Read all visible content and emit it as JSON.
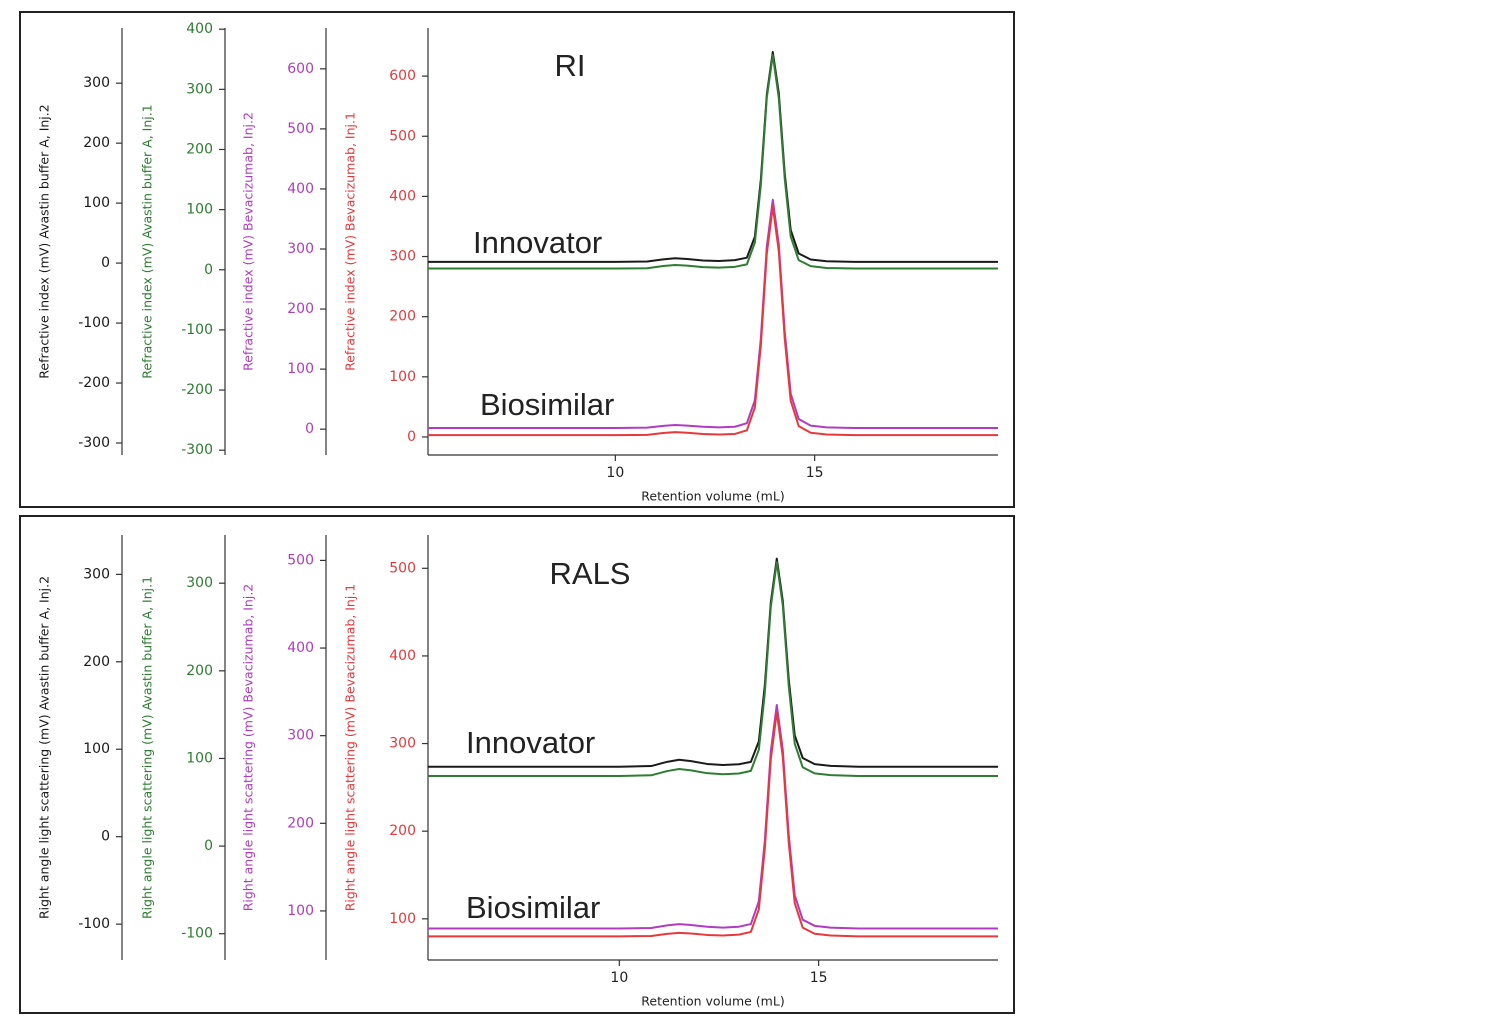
{
  "chart_data": [
    {
      "type": "line",
      "title": "RI",
      "x_label": "Retention volume (mL)",
      "annotations": [
        "Innovator",
        "Biosimilar"
      ],
      "xlim": [
        5.3,
        19.6
      ],
      "xticks": [
        10,
        15
      ],
      "x": [
        5.3,
        6,
        7,
        8,
        9,
        10,
        10.8,
        11.2,
        11.5,
        11.8,
        12.2,
        12.6,
        13.0,
        13.3,
        13.5,
        13.65,
        13.8,
        13.95,
        14.1,
        14.25,
        14.4,
        14.6,
        14.9,
        15.3,
        16,
        17,
        18,
        19,
        19.6
      ],
      "y_axes": [
        {
          "label": "Refractive index (mV) Avastin buffer A, Inj.2",
          "color": "#1a1a1a",
          "ylim": [
            -320,
            392
          ],
          "yticks": [
            -300,
            -200,
            -100,
            0,
            100,
            200,
            300
          ]
        },
        {
          "label": "Refractive index (mV) Avastin buffer A, Inj.1",
          "color": "#2e7d32",
          "ylim": [
            -308,
            402
          ],
          "yticks": [
            -300,
            -200,
            -100,
            0,
            100,
            200,
            300,
            400
          ]
        },
        {
          "label": "Refractive index (mV) Bevacizumab, Inj.2",
          "color": "#b03cc0",
          "ylim": [
            -43,
            668
          ],
          "yticks": [
            0,
            100,
            200,
            300,
            400,
            500,
            600
          ]
        },
        {
          "label": "Refractive index (mV) Bevacizumab, Inj.1",
          "color": "#e8383c",
          "ylim": [
            -30,
            680
          ],
          "yticks": [
            0,
            100,
            200,
            300,
            400,
            500,
            600
          ]
        }
      ],
      "series": [
        {
          "axis": 0,
          "color": "#1a1a1a",
          "values": [
            2,
            2,
            2,
            2,
            2,
            2,
            2.6,
            6.2,
            8,
            6.8,
            4.4,
            3.5,
            4.9,
            9,
            44,
            139,
            281,
            352,
            284,
            149,
            55,
            16,
            6,
            3,
            2,
            2,
            2,
            2,
            2
          ]
        },
        {
          "axis": 1,
          "color": "#2e7d32",
          "values": [
            2,
            2,
            2,
            2,
            2,
            2,
            2.6,
            6.2,
            8,
            6.8,
            4.4,
            3.5,
            4.9,
            9,
            45,
            141,
            286,
            357,
            286,
            151,
            55,
            16,
            6,
            3,
            2,
            2,
            2,
            2,
            2
          ]
        },
        {
          "axis": 2,
          "color": "#b03cc0",
          "values": [
            2,
            2,
            2,
            2,
            2,
            2,
            2.5,
            5.5,
            7,
            6,
            4,
            3,
            4,
            10,
            48,
            151,
            304,
            382,
            308,
            162,
            59,
            17,
            6,
            3,
            2,
            2,
            2,
            2,
            2
          ]
        },
        {
          "axis": 3,
          "color": "#e8383c",
          "values": [
            3,
            3,
            3,
            3,
            3,
            3,
            3.5,
            6.5,
            8,
            7,
            5,
            4,
            5,
            11,
            49,
            152,
            305,
            383,
            309,
            163,
            60,
            18,
            7,
            4,
            3,
            3,
            3,
            3,
            3
          ]
        }
      ]
    },
    {
      "type": "line",
      "title": "RALS",
      "x_label": "Retention volume (mL)",
      "annotations": [
        "Innovator",
        "Biosimilar"
      ],
      "xlim": [
        5.2,
        19.5
      ],
      "xticks": [
        10,
        15
      ],
      "x": [
        5.2,
        6,
        7,
        8,
        9,
        10,
        10.8,
        11.2,
        11.5,
        11.8,
        12.2,
        12.6,
        13.0,
        13.3,
        13.5,
        13.65,
        13.8,
        13.95,
        14.1,
        14.25,
        14.4,
        14.6,
        14.9,
        15.3,
        16,
        17,
        18,
        19,
        19.5
      ],
      "y_axes": [
        {
          "label": "Right angle light scattering (mV) Avastin buffer A, Inj.2",
          "color": "#1a1a1a",
          "ylim": [
            -141,
            345
          ],
          "yticks": [
            -100,
            0,
            100,
            200,
            300
          ]
        },
        {
          "label": "Right angle light scattering (mV) Avastin buffer A, Inj.1",
          "color": "#2e7d32",
          "ylim": [
            -130,
            355
          ],
          "yticks": [
            -100,
            0,
            100,
            200,
            300
          ]
        },
        {
          "label": "Right angle light scattering (mV) Bevacizumab, Inj.2",
          "color": "#b03cc0",
          "ylim": [
            44,
            529
          ],
          "yticks": [
            100,
            200,
            300,
            400,
            500
          ]
        },
        {
          "label": "Right angle light scattering (mV) Bevacizumab, Inj.1",
          "color": "#e8383c",
          "ylim": [
            53,
            538
          ],
          "yticks": [
            100,
            200,
            300,
            400,
            500
          ]
        }
      ],
      "series": [
        {
          "axis": 0,
          "color": "#1a1a1a",
          "values": [
            80,
            80,
            80,
            80,
            80,
            80,
            80.8,
            85.6,
            88,
            86.4,
            83.2,
            82,
            82.8,
            85.6,
            109,
            173,
            268,
            318,
            270,
            180,
            116,
            90,
            83,
            81,
            80,
            80,
            80,
            80,
            80
          ]
        },
        {
          "axis": 1,
          "color": "#2e7d32",
          "values": [
            80,
            80,
            80,
            80,
            80,
            80,
            80.8,
            85.6,
            88,
            86.4,
            83.2,
            82,
            82.8,
            85.8,
            110,
            175,
            273,
            324,
            275,
            183,
            117,
            90,
            83,
            81,
            80,
            80,
            80,
            80,
            80
          ]
        },
        {
          "axis": 2,
          "color": "#b03cc0",
          "values": [
            80,
            80,
            80,
            80,
            80,
            80,
            80.5,
            83.5,
            85,
            84,
            82,
            81,
            82,
            85,
            111,
            180,
            282,
            335,
            284,
            187,
            118,
            90,
            83,
            81,
            80,
            80,
            80,
            80,
            80
          ]
        },
        {
          "axis": 3,
          "color": "#e8383c",
          "values": [
            80,
            80,
            80,
            80,
            80,
            80,
            80.4,
            82.8,
            84,
            83.2,
            81.6,
            81,
            82,
            85,
            111,
            180,
            282,
            336,
            285,
            187,
            118,
            90,
            83,
            81,
            80,
            80,
            80,
            80,
            80
          ]
        }
      ]
    }
  ]
}
